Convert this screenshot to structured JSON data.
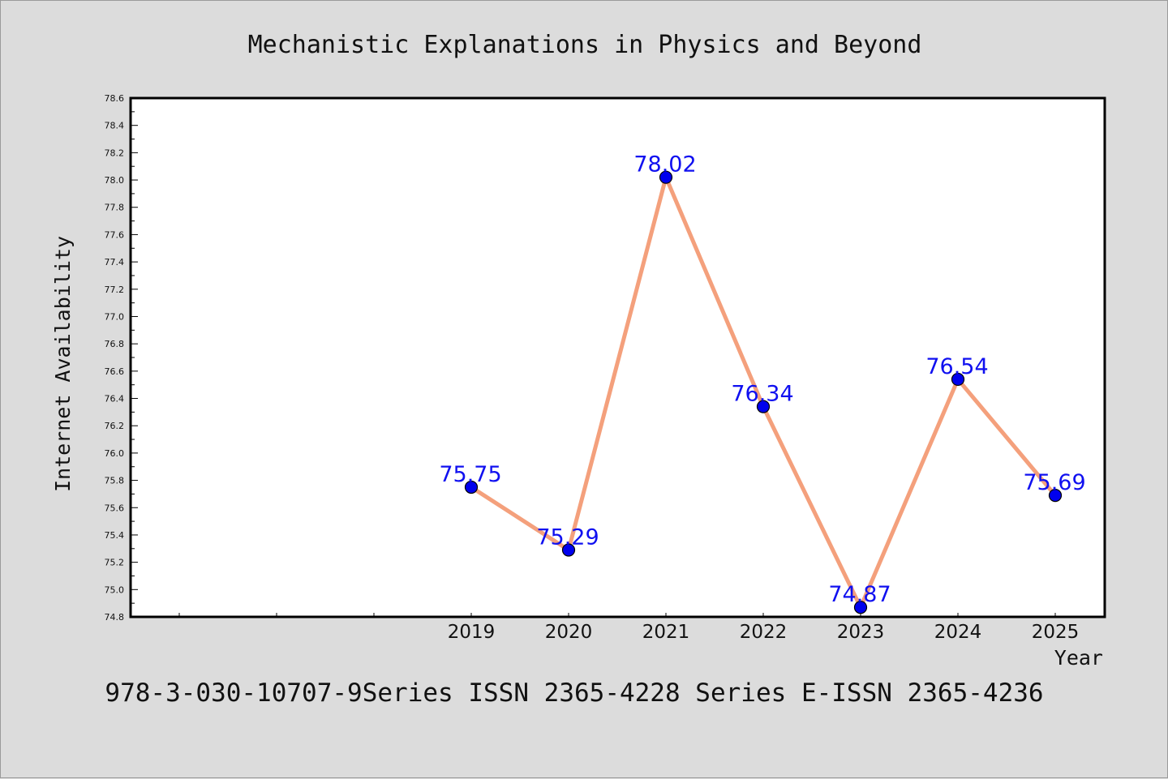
{
  "chart_data": {
    "type": "line",
    "title": "Mechanistic Explanations in Physics and Beyond",
    "xlabel": "Year",
    "ylabel": "Internet Availability",
    "x": [
      "2019",
      "2020",
      "2021",
      "2022",
      "2023",
      "2024",
      "2025"
    ],
    "series": [
      {
        "values": [
          75.75,
          75.29,
          78.02,
          76.34,
          74.87,
          76.54,
          75.69
        ],
        "labels": [
          "75.75",
          "75.29",
          "78.02",
          "76.34",
          "74.87",
          "76.54",
          "75.69"
        ]
      }
    ],
    "ylim": [
      74.8,
      78.6
    ],
    "yticks": [
      "74.8",
      "75.0",
      "75.2",
      "75.4",
      "75.6",
      "75.8",
      "76.0",
      "76.2",
      "76.4",
      "76.6",
      "76.8",
      "77.0",
      "77.2",
      "77.4",
      "77.6",
      "77.8",
      "78.0",
      "78.2",
      "78.4",
      "78.6"
    ],
    "grid": false,
    "colors": {
      "line": "#f4a07c",
      "marker": "#0000ee",
      "data_label": "#1010f0",
      "background": "#dcdcdc",
      "plot_background": "#ffffff"
    }
  },
  "footer": "978-3-030-10707-9Series ISSN 2365-4228 Series E-ISSN 2365-4236"
}
